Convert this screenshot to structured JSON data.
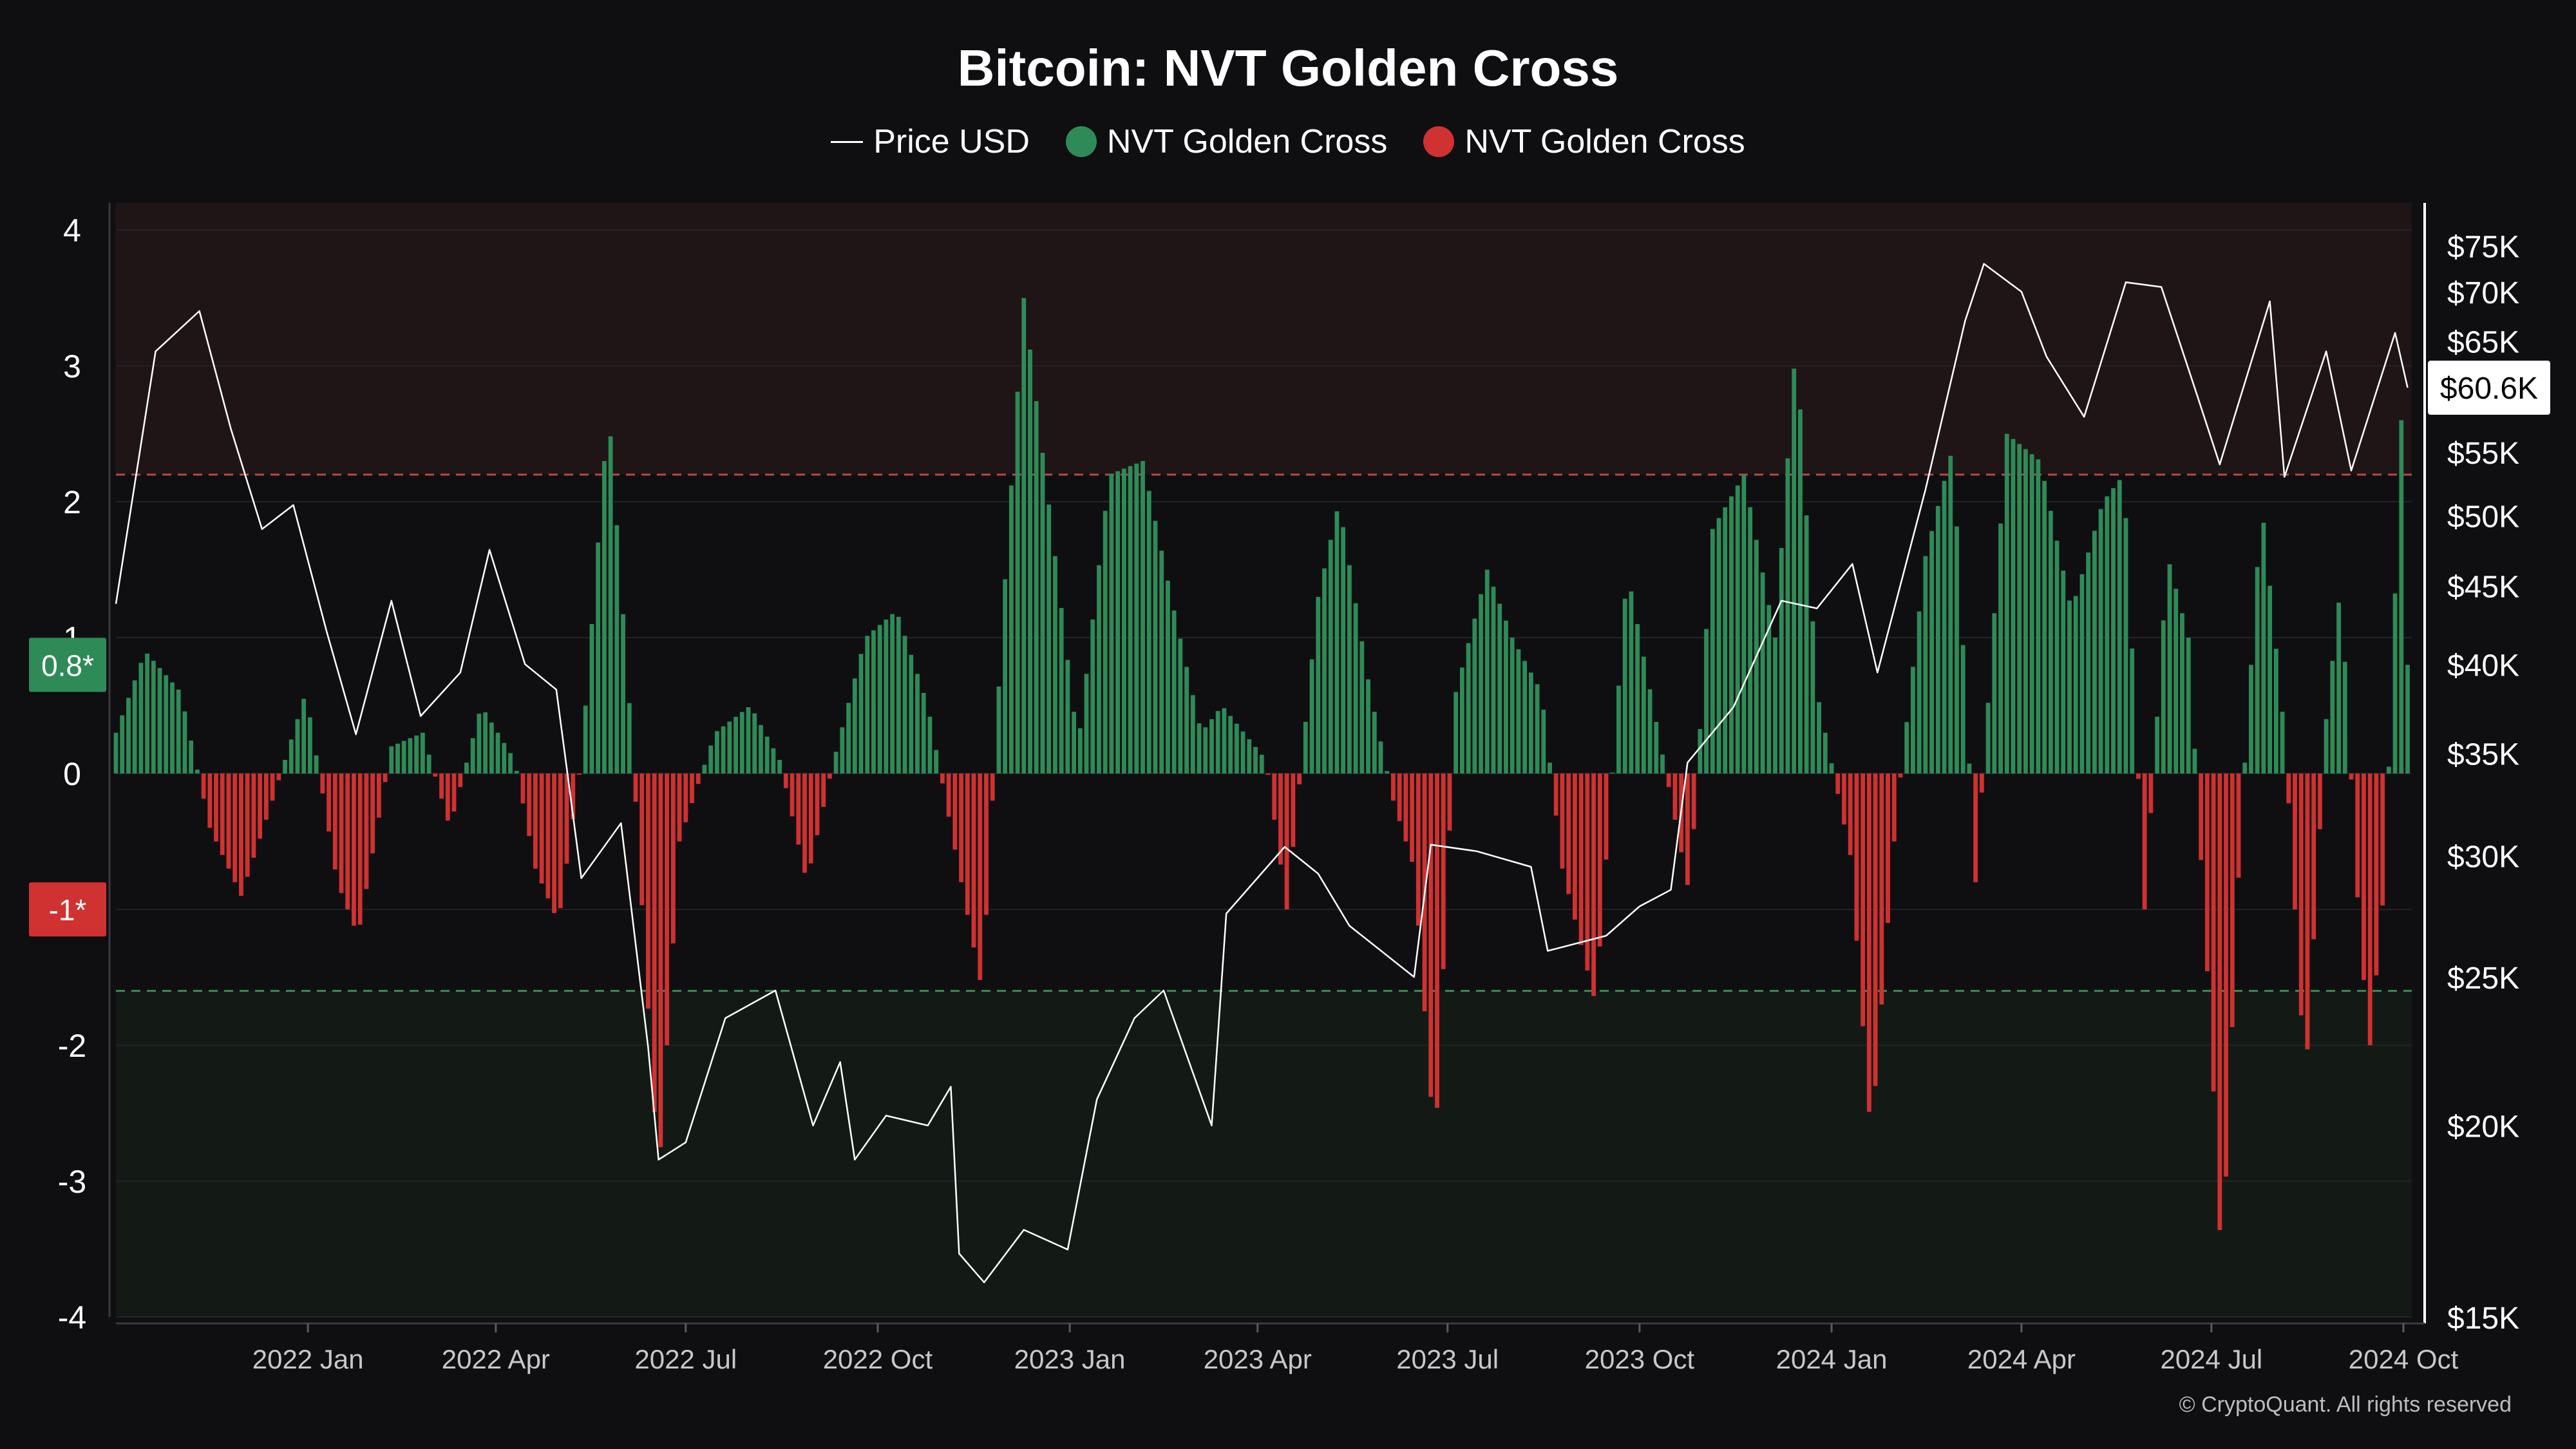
{
  "colors": {
    "background": "#0f0f12",
    "price_line": "#ffffff",
    "green": "#2e8b57",
    "red": "#d03131",
    "upper_zone": "#1f1516",
    "lower_zone": "#131a16",
    "upper_threshold_line": "#b84848",
    "lower_threshold_line": "#3f8a55"
  },
  "copyright": "© CryptoQuant. All rights reserved",
  "chart_data": {
    "type": "bar+line",
    "title": "Bitcoin: NVT Golden Cross",
    "legend": [
      {
        "label": "Price USD",
        "marker": "line",
        "color": "#ffffff"
      },
      {
        "label": "NVT Golden Cross",
        "marker": "dot",
        "color": "#2e8b57"
      },
      {
        "label": "NVT Golden Cross",
        "marker": "dot",
        "color": "#d03131"
      }
    ],
    "legend_position": "top-center",
    "x_range": [
      "2021-10-01",
      "2024-10-05"
    ],
    "x_ticks": [
      {
        "date": "2022-01-01",
        "label": "2022 Jan"
      },
      {
        "date": "2022-04-01",
        "label": "2022 Apr"
      },
      {
        "date": "2022-07-01",
        "label": "2022 Jul"
      },
      {
        "date": "2022-10-01",
        "label": "2022 Oct"
      },
      {
        "date": "2023-01-01",
        "label": "2023 Jan"
      },
      {
        "date": "2023-04-01",
        "label": "2023 Apr"
      },
      {
        "date": "2023-07-01",
        "label": "2023 Jul"
      },
      {
        "date": "2023-10-01",
        "label": "2023 Oct"
      },
      {
        "date": "2024-01-01",
        "label": "2024 Jan"
      },
      {
        "date": "2024-04-01",
        "label": "2024 Apr"
      },
      {
        "date": "2024-07-01",
        "label": "2024 Jul"
      },
      {
        "date": "2024-10-01",
        "label": "2024 Oct"
      }
    ],
    "left_axis": {
      "ylim": [
        -4,
        4.2
      ],
      "ticks": [
        4,
        3,
        2,
        1,
        0,
        -1,
        -2,
        -3,
        -4
      ],
      "labels": [
        "4",
        "3",
        "2",
        "1",
        "0",
        "-1",
        "-2",
        "-3",
        "-4"
      ],
      "markers": [
        {
          "value": 0.8,
          "label": "0.8*",
          "color": "#2e8b57"
        },
        {
          "value": -1,
          "label": "-1*",
          "color": "#d03131"
        }
      ]
    },
    "right_axis": {
      "scale": "log",
      "ylim": [
        15000,
        80000
      ],
      "ticks": [
        75000,
        70000,
        65000,
        55000,
        50000,
        45000,
        40000,
        35000,
        30000,
        25000,
        20000,
        15000
      ],
      "labels": [
        "$75K",
        "$70K",
        "$65K",
        "$55K",
        "$50K",
        "$45K",
        "$40K",
        "$35K",
        "$30K",
        "$25K",
        "$20K",
        "$15K"
      ],
      "current_value": 60600,
      "current_label": "$60.6K"
    },
    "thresholds": [
      {
        "value": 2.2,
        "zone": "overbought",
        "color": "#b84848"
      },
      {
        "value": -1.6,
        "zone": "oversold",
        "color": "#3f8a55"
      }
    ],
    "grid": true,
    "price_series": {
      "name": "Price USD",
      "points": [
        [
          "2021-10-01",
          43800
        ],
        [
          "2021-10-20",
          64000
        ],
        [
          "2021-11-10",
          68000
        ],
        [
          "2021-11-25",
          57000
        ],
        [
          "2021-12-10",
          49000
        ],
        [
          "2021-12-25",
          50800
        ],
        [
          "2022-01-10",
          42000
        ],
        [
          "2022-01-24",
          36000
        ],
        [
          "2022-02-10",
          44000
        ],
        [
          "2022-02-24",
          37000
        ],
        [
          "2022-03-15",
          39500
        ],
        [
          "2022-03-29",
          47500
        ],
        [
          "2022-04-15",
          40000
        ],
        [
          "2022-04-30",
          38500
        ],
        [
          "2022-05-12",
          29000
        ],
        [
          "2022-05-31",
          31500
        ],
        [
          "2022-06-13",
          22500
        ],
        [
          "2022-06-18",
          19000
        ],
        [
          "2022-07-01",
          19500
        ],
        [
          "2022-07-20",
          23500
        ],
        [
          "2022-08-13",
          24500
        ],
        [
          "2022-08-31",
          20000
        ],
        [
          "2022-09-13",
          22000
        ],
        [
          "2022-09-20",
          19000
        ],
        [
          "2022-10-05",
          20300
        ],
        [
          "2022-10-25",
          20000
        ],
        [
          "2022-11-05",
          21200
        ],
        [
          "2022-11-09",
          16500
        ],
        [
          "2022-11-21",
          15800
        ],
        [
          "2022-12-10",
          17100
        ],
        [
          "2022-12-31",
          16600
        ],
        [
          "2023-01-14",
          20800
        ],
        [
          "2023-02-01",
          23500
        ],
        [
          "2023-02-15",
          24500
        ],
        [
          "2023-03-10",
          20000
        ],
        [
          "2023-03-17",
          27500
        ],
        [
          "2023-04-14",
          30400
        ],
        [
          "2023-04-30",
          29200
        ],
        [
          "2023-05-15",
          27000
        ],
        [
          "2023-06-15",
          25000
        ],
        [
          "2023-06-23",
          30500
        ],
        [
          "2023-07-15",
          30200
        ],
        [
          "2023-08-10",
          29500
        ],
        [
          "2023-08-18",
          26000
        ],
        [
          "2023-09-15",
          26600
        ],
        [
          "2023-10-01",
          27800
        ],
        [
          "2023-10-16",
          28500
        ],
        [
          "2023-10-24",
          34500
        ],
        [
          "2023-11-15",
          37500
        ],
        [
          "2023-12-08",
          44000
        ],
        [
          "2023-12-25",
          43500
        ],
        [
          "2024-01-11",
          46500
        ],
        [
          "2024-01-23",
          39500
        ],
        [
          "2024-02-15",
          52000
        ],
        [
          "2024-03-05",
          67000
        ],
        [
          "2024-03-14",
          73000
        ],
        [
          "2024-04-01",
          70000
        ],
        [
          "2024-04-13",
          63500
        ],
        [
          "2024-05-01",
          58000
        ],
        [
          "2024-05-21",
          71000
        ],
        [
          "2024-06-07",
          70500
        ],
        [
          "2024-06-24",
          60000
        ],
        [
          "2024-07-05",
          54000
        ],
        [
          "2024-07-29",
          69000
        ],
        [
          "2024-08-05",
          53000
        ],
        [
          "2024-08-25",
          64000
        ],
        [
          "2024-09-06",
          53500
        ],
        [
          "2024-09-27",
          65800
        ],
        [
          "2024-10-03",
          60600
        ]
      ]
    },
    "nvt_series": {
      "name": "NVT Golden Cross",
      "points": [
        [
          "2021-10-01",
          0.3
        ],
        [
          "2021-10-15",
          0.9
        ],
        [
          "2021-11-01",
          0.6
        ],
        [
          "2021-11-15",
          -0.4
        ],
        [
          "2021-11-30",
          -0.9
        ],
        [
          "2021-12-15",
          -0.2
        ],
        [
          "2021-12-31",
          0.6
        ],
        [
          "2022-01-15",
          -0.8
        ],
        [
          "2022-01-25",
          -1.2
        ],
        [
          "2022-02-10",
          0.2
        ],
        [
          "2022-02-25",
          0.3
        ],
        [
          "2022-03-10",
          -0.4
        ],
        [
          "2022-03-25",
          0.5
        ],
        [
          "2022-04-10",
          0.1
        ],
        [
          "2022-04-20",
          -0.7
        ],
        [
          "2022-05-01",
          -1.1
        ],
        [
          "2022-05-12",
          0.1
        ],
        [
          "2022-05-25",
          2.7
        ],
        [
          "2022-06-05",
          0.3
        ],
        [
          "2022-06-18",
          -3.0
        ],
        [
          "2022-06-28",
          -0.5
        ],
        [
          "2022-07-15",
          0.3
        ],
        [
          "2022-08-01",
          0.5
        ],
        [
          "2022-08-15",
          0.1
        ],
        [
          "2022-08-28",
          -0.8
        ],
        [
          "2022-09-10",
          0.1
        ],
        [
          "2022-09-25",
          1.0
        ],
        [
          "2022-10-10",
          1.2
        ],
        [
          "2022-10-25",
          0.5
        ],
        [
          "2022-11-05",
          -0.4
        ],
        [
          "2022-11-20",
          -1.6
        ],
        [
          "2022-11-30",
          1.2
        ],
        [
          "2022-12-10",
          3.5
        ],
        [
          "2022-12-25",
          1.6
        ],
        [
          "2023-01-05",
          0.2
        ],
        [
          "2023-01-20",
          2.2
        ],
        [
          "2023-02-05",
          2.3
        ],
        [
          "2023-02-20",
          1.2
        ],
        [
          "2023-03-05",
          0.3
        ],
        [
          "2023-03-15",
          0.5
        ],
        [
          "2023-04-05",
          0.1
        ],
        [
          "2023-04-15",
          -1.0
        ],
        [
          "2023-04-30",
          1.3
        ],
        [
          "2023-05-10",
          2.0
        ],
        [
          "2023-05-25",
          0.6
        ],
        [
          "2023-06-05",
          -0.2
        ],
        [
          "2023-06-15",
          -0.7
        ],
        [
          "2023-06-25",
          -2.8
        ],
        [
          "2023-07-05",
          0.6
        ],
        [
          "2023-07-20",
          1.5
        ],
        [
          "2023-08-01",
          1.0
        ],
        [
          "2023-08-15",
          0.6
        ],
        [
          "2023-08-25",
          -0.7
        ],
        [
          "2023-09-10",
          -1.7
        ],
        [
          "2023-09-25",
          1.5
        ],
        [
          "2023-10-10",
          0.3
        ],
        [
          "2023-10-25",
          -0.9
        ],
        [
          "2023-11-05",
          1.8
        ],
        [
          "2023-11-20",
          2.2
        ],
        [
          "2023-12-05",
          1.0
        ],
        [
          "2023-12-15",
          3.2
        ],
        [
          "2023-12-25",
          0.6
        ],
        [
          "2024-01-10",
          -0.6
        ],
        [
          "2024-01-20",
          -2.7
        ],
        [
          "2024-02-01",
          -0.3
        ],
        [
          "2024-02-15",
          1.6
        ],
        [
          "2024-02-28",
          2.4
        ],
        [
          "2024-03-10",
          -0.8
        ],
        [
          "2024-03-25",
          2.5
        ],
        [
          "2024-04-10",
          2.3
        ],
        [
          "2024-04-25",
          1.2
        ],
        [
          "2024-05-10",
          2.0
        ],
        [
          "2024-05-20",
          2.2
        ],
        [
          "2024-05-30",
          -1.0
        ],
        [
          "2024-06-10",
          1.6
        ],
        [
          "2024-06-20",
          1.0
        ],
        [
          "2024-07-01",
          -2.0
        ],
        [
          "2024-07-06",
          -3.7
        ],
        [
          "2024-07-15",
          -0.4
        ],
        [
          "2024-07-25",
          2.0
        ],
        [
          "2024-08-05",
          0.3
        ],
        [
          "2024-08-15",
          -2.3
        ],
        [
          "2024-08-25",
          0.4
        ],
        [
          "2024-09-01",
          1.4
        ],
        [
          "2024-09-10",
          -1.2
        ],
        [
          "2024-09-15",
          -2.0
        ],
        [
          "2024-09-22",
          -0.8
        ],
        [
          "2024-09-30",
          2.6
        ],
        [
          "2024-10-03",
          0.8
        ]
      ]
    }
  }
}
